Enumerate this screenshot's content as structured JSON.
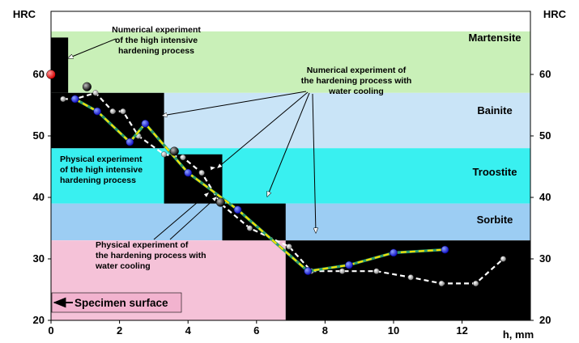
{
  "chart_data": {
    "type": "line",
    "xlabel": "h, mm",
    "ylabel_left": "HRC",
    "ylabel_right": "HRC",
    "xlim": [
      0,
      14
    ],
    "ylim": [
      20,
      67
    ],
    "x_ticks": [
      0,
      2,
      4,
      6,
      8,
      10,
      12
    ],
    "y_ticks": [
      20,
      30,
      40,
      50,
      60
    ],
    "zones": [
      {
        "name": "Martensite",
        "y": [
          57,
          67
        ],
        "color": "#c9f0b8"
      },
      {
        "name": "Bainite",
        "y": [
          48,
          57
        ],
        "color": "#c9e4f7"
      },
      {
        "name": "Troostite",
        "y": [
          39,
          48
        ],
        "color": "#39f0f0"
      },
      {
        "name": "Sorbite",
        "y": [
          33,
          39
        ],
        "color": "#9ccdf3"
      },
      {
        "name": "",
        "y": [
          20,
          33
        ],
        "color": "#ffffff"
      }
    ],
    "pink_region": {
      "x": [
        0,
        6.85
      ],
      "y": [
        20,
        33
      ],
      "color": "#f5c2d8"
    },
    "black_blocks": [
      {
        "x": [
          0,
          0.5
        ],
        "y": [
          57,
          66
        ]
      },
      {
        "x": [
          0,
          3.3
        ],
        "y": [
          48,
          57
        ]
      },
      {
        "x": [
          3.3,
          5.0
        ],
        "y": [
          39,
          47
        ]
      },
      {
        "x": [
          5.0,
          6.85
        ],
        "y": [
          33,
          39
        ]
      },
      {
        "x": [
          6.85,
          14.0
        ],
        "y": [
          20,
          33
        ]
      }
    ],
    "series": [
      {
        "name": "",
        "style": "yellow-dashed-blue-markers",
        "x": [
          0.7,
          1.35,
          2.3,
          2.75,
          4.0,
          5.45,
          7.5,
          8.7,
          10.0,
          11.5
        ],
        "y": [
          56,
          54,
          49,
          52,
          44,
          38,
          28,
          29,
          31,
          31.5
        ]
      },
      {
        "name": "",
        "style": "white-dashed-gray-markers",
        "x": [
          0.35,
          0.7,
          1.3,
          1.8,
          2.1,
          2.55,
          3.3,
          3.85,
          4.4,
          4.95,
          5.8,
          6.95,
          7.6,
          8.5,
          9.5,
          10.5,
          11.4,
          12.4,
          13.2
        ],
        "y": [
          56,
          56,
          57,
          54,
          54,
          50,
          47,
          46.5,
          44,
          39,
          35,
          32,
          28,
          28,
          28,
          27,
          26,
          26,
          30
        ]
      }
    ],
    "special_points": [
      {
        "x": 0,
        "y": 60,
        "color": "red"
      },
      {
        "x": 1.05,
        "y": 58,
        "color": "black"
      },
      {
        "x": 3.6,
        "y": 47.5,
        "color": "black"
      },
      {
        "x": 4.95,
        "y": 39.2,
        "color": "black"
      }
    ],
    "annotations": [
      {
        "id": "num-hi",
        "lines": [
          "Numerical experiment",
          "of the high intensive",
          "hardening process"
        ],
        "bold": true
      },
      {
        "id": "num-wc",
        "lines": [
          "Numerical experiment of",
          "the hardening process with",
          "water cooling"
        ],
        "bold": true
      },
      {
        "id": "phys-hi",
        "lines": [
          "Physical experiment",
          "of the high intensive",
          "hardening process"
        ],
        "bold": true
      },
      {
        "id": "phys-wc",
        "lines": [
          "Physical experiment of",
          "the hardening process with",
          "water cooling"
        ],
        "bold": true
      },
      {
        "id": "surface",
        "lines": [
          "Specimen surface"
        ],
        "bold": true
      }
    ],
    "grid": false,
    "legend": "none"
  }
}
